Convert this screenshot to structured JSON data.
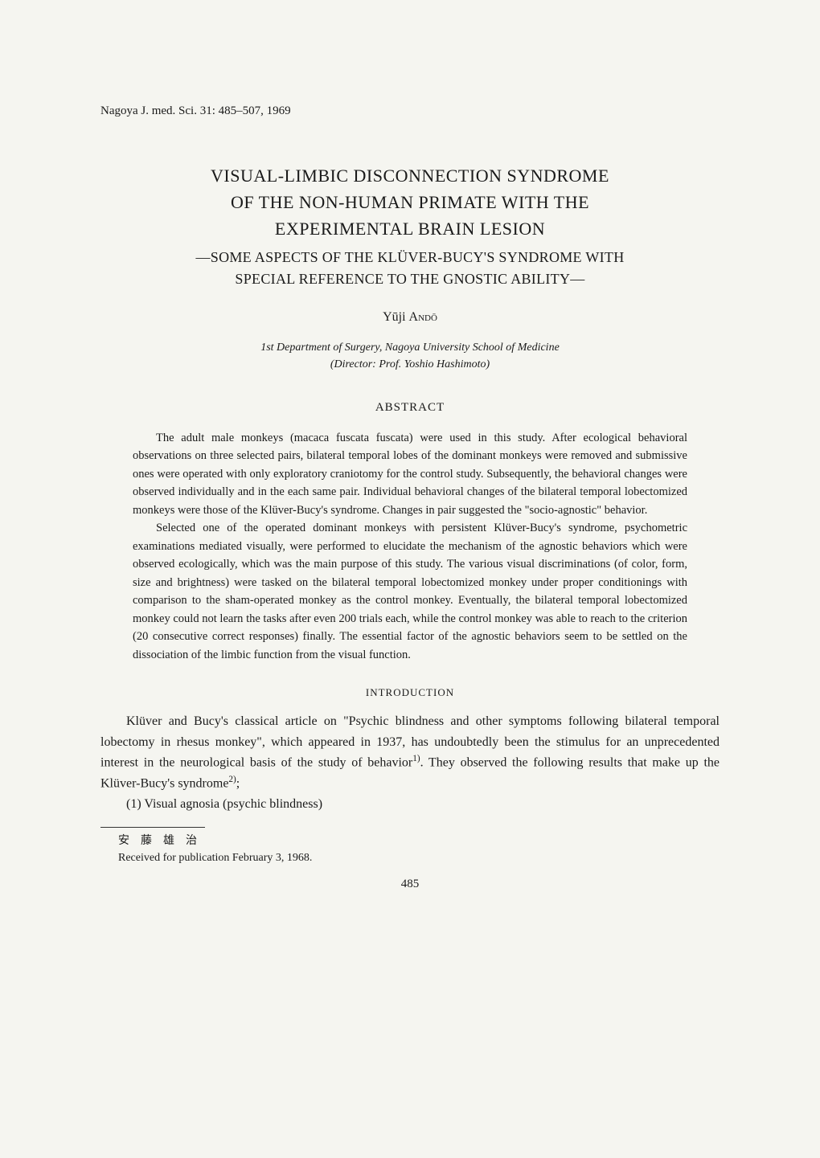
{
  "journal_ref": "Nagoya J. med. Sci. 31: 485–507, 1969",
  "title": {
    "line1": "VISUAL-LIMBIC DISCONNECTION SYNDROME",
    "line2": "OF THE NON-HUMAN PRIMATE WITH THE",
    "line3": "EXPERIMENTAL BRAIN LESION"
  },
  "subtitle": {
    "line1": "—SOME ASPECTS OF THE KLÜVER-BUCY'S SYNDROME WITH",
    "line2": "SPECIAL REFERENCE TO THE GNOSTIC ABILITY—"
  },
  "author": {
    "given": "Yūji",
    "surname": "Andō"
  },
  "affiliation": {
    "line1": "1st Department of Surgery, Nagoya University School of Medicine",
    "line2": "(Director: Prof. Yoshio Hashimoto)"
  },
  "abstract": {
    "heading": "ABSTRACT",
    "p1": "The adult male monkeys (macaca fuscata fuscata) were used in this study. After ecological behavioral observations on three selected pairs, bilateral temporal lobes of the dominant monkeys were removed and submissive ones were operated with only exploratory craniotomy for the control study. Subsequently, the behavioral changes were observed individually and in the each same pair. Individual behavioral changes of the bilateral temporal lobectomized monkeys were those of the Klüver-Bucy's syndrome. Changes in pair suggested the \"socio-agnostic\" behavior.",
    "p2": "Selected one of the operated dominant monkeys with persistent Klüver-Bucy's syndrome, psychometric examinations mediated visually, were performed to elucidate the mechanism of the agnostic behaviors which were observed ecologically, which was the main purpose of this study. The various visual discriminations (of color, form, size and brightness) were tasked on the bilateral temporal lobectomized monkey under proper conditionings with comparison to the sham-operated monkey as the control monkey. Eventually, the bilateral temporal lobectomized monkey could not learn the tasks after even 200 trials each, while the control monkey was able to reach to the criterion (20 consecutive correct responses) finally. The essential factor of the agnostic behaviors seem to be settled on the dissociation of the limbic function from the visual function."
  },
  "introduction": {
    "heading": "INTRODUCTION",
    "p1_a": "Klüver and Bucy's classical article on \"Psychic blindness and other symptoms following bilateral temporal lobectomy in rhesus monkey\", which appeared in 1937, has undoubtedly been the stimulus for an unprecedented interest in the neurological basis of the study of behavior",
    "sup1": "1)",
    "p1_b": ". They observed the following results that make up the Klüver-Bucy's syndrome",
    "sup2": "2)",
    "p1_c": ";",
    "list1": "(1) Visual agnosia (psychic blindness)"
  },
  "footnote": {
    "name_jp": "安　藤　雄　治",
    "received": "Received for publication February 3, 1968."
  },
  "page_number": "485"
}
